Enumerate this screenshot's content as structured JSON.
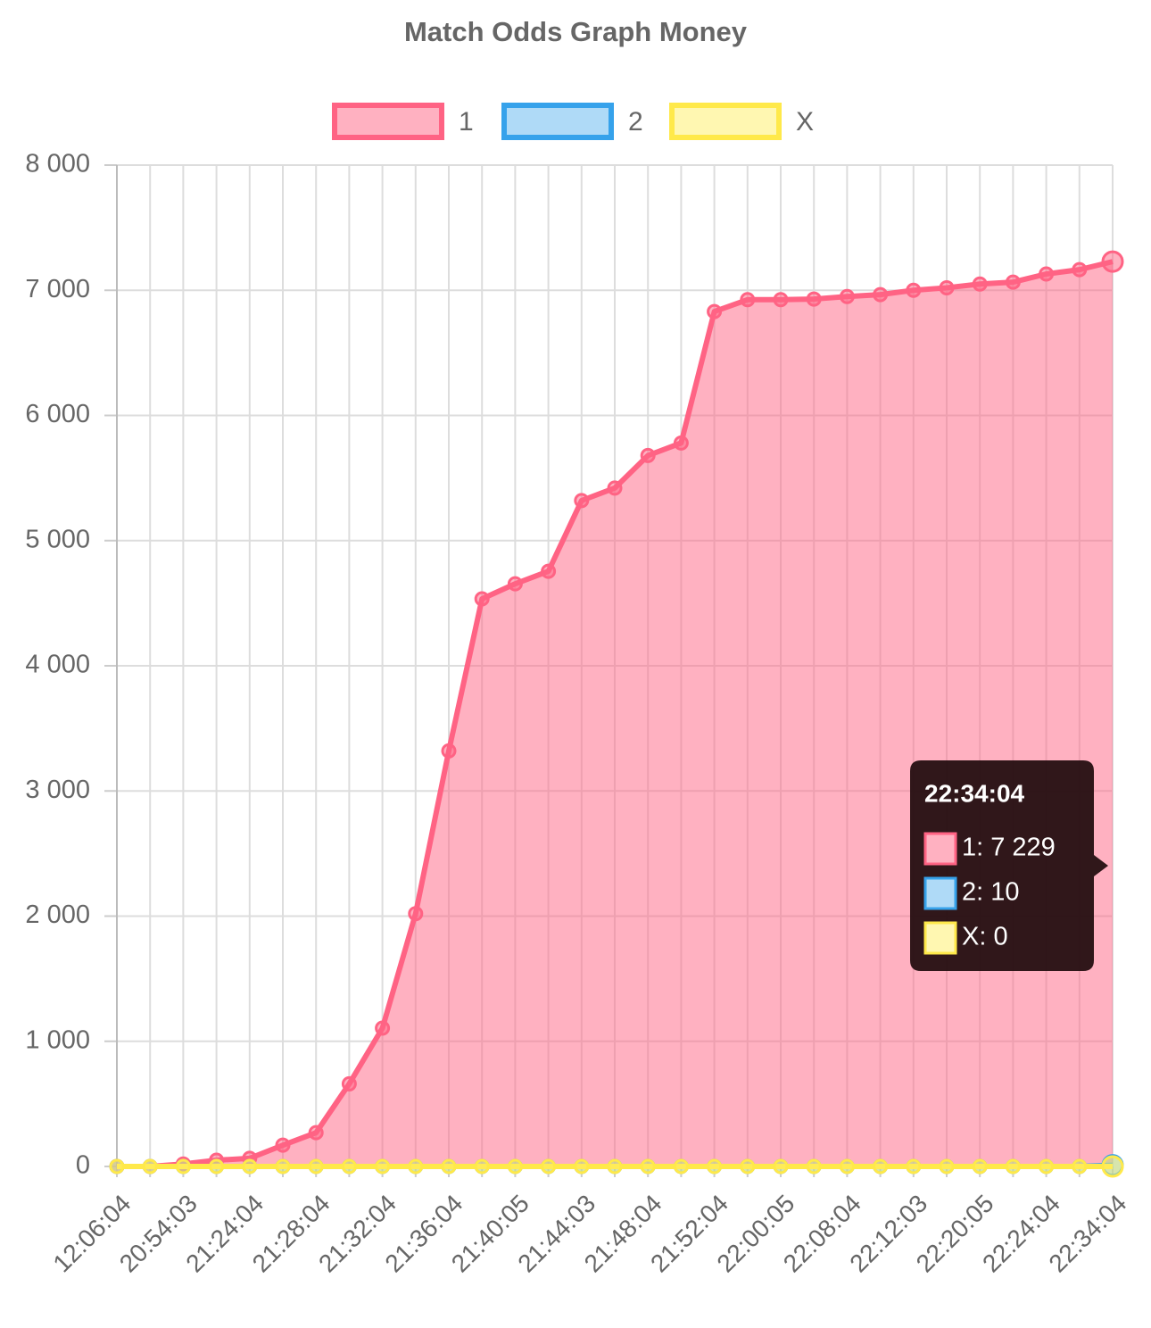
{
  "chart_data": {
    "type": "line",
    "title": "Match Odds Graph Money",
    "categories": [
      "12:06:04",
      null,
      "20:54:03",
      null,
      "21:24:04",
      null,
      "21:28:04",
      null,
      "21:32:04",
      null,
      "21:36:04",
      null,
      "21:40:05",
      null,
      "21:44:03",
      null,
      "21:48:04",
      null,
      "21:52:04",
      null,
      "22:00:05",
      null,
      "22:08:04",
      null,
      "22:12:03",
      null,
      "22:20:05",
      null,
      "22:24:04",
      null,
      "22:34:04"
    ],
    "series": [
      {
        "name": "1",
        "color": "#ff6384",
        "fill": "rgba(255,99,132,0.5)",
        "values": [
          0,
          0,
          20,
          50,
          65,
          170,
          270,
          660,
          1105,
          2020,
          3320,
          4535,
          4655,
          4755,
          5320,
          5420,
          5680,
          5780,
          6830,
          6925,
          6925,
          6930,
          6950,
          6965,
          7000,
          7020,
          7050,
          7065,
          7130,
          7165,
          7229
        ]
      },
      {
        "name": "2",
        "color": "#36a2eb",
        "fill": "rgba(54,162,235,0.4)",
        "values": [
          0,
          0,
          0,
          0,
          0,
          0,
          0,
          0,
          0,
          0,
          0,
          0,
          0,
          0,
          0,
          0,
          0,
          0,
          0,
          0,
          0,
          0,
          0,
          0,
          0,
          0,
          0,
          0,
          0,
          0,
          10
        ]
      },
      {
        "name": "X",
        "color": "#ffe94a",
        "fill": "rgba(255,240,100,0.5)",
        "values": [
          0,
          0,
          0,
          0,
          0,
          0,
          0,
          0,
          0,
          0,
          0,
          0,
          0,
          0,
          0,
          0,
          0,
          0,
          0,
          0,
          0,
          0,
          0,
          0,
          0,
          0,
          0,
          0,
          0,
          0,
          0
        ]
      }
    ],
    "ylim": [
      0,
      8000
    ],
    "yticks": [
      0,
      {
        "value": 1000,
        "label": "1 000"
      },
      {
        "value": 2000,
        "label": "2 000"
      },
      {
        "value": 3000,
        "label": "3 000"
      },
      {
        "value": 4000,
        "label": "4 000"
      },
      {
        "value": 5000,
        "label": "5 000"
      },
      {
        "value": 6000,
        "label": "6 000"
      },
      {
        "value": 7000,
        "label": "7 000"
      },
      {
        "value": 8000,
        "label": "8 000"
      }
    ],
    "grid": true,
    "legend": "top",
    "tooltip": {
      "items": [
        "1: 7 229",
        "2: 10",
        "X: 0"
      ]
    }
  }
}
